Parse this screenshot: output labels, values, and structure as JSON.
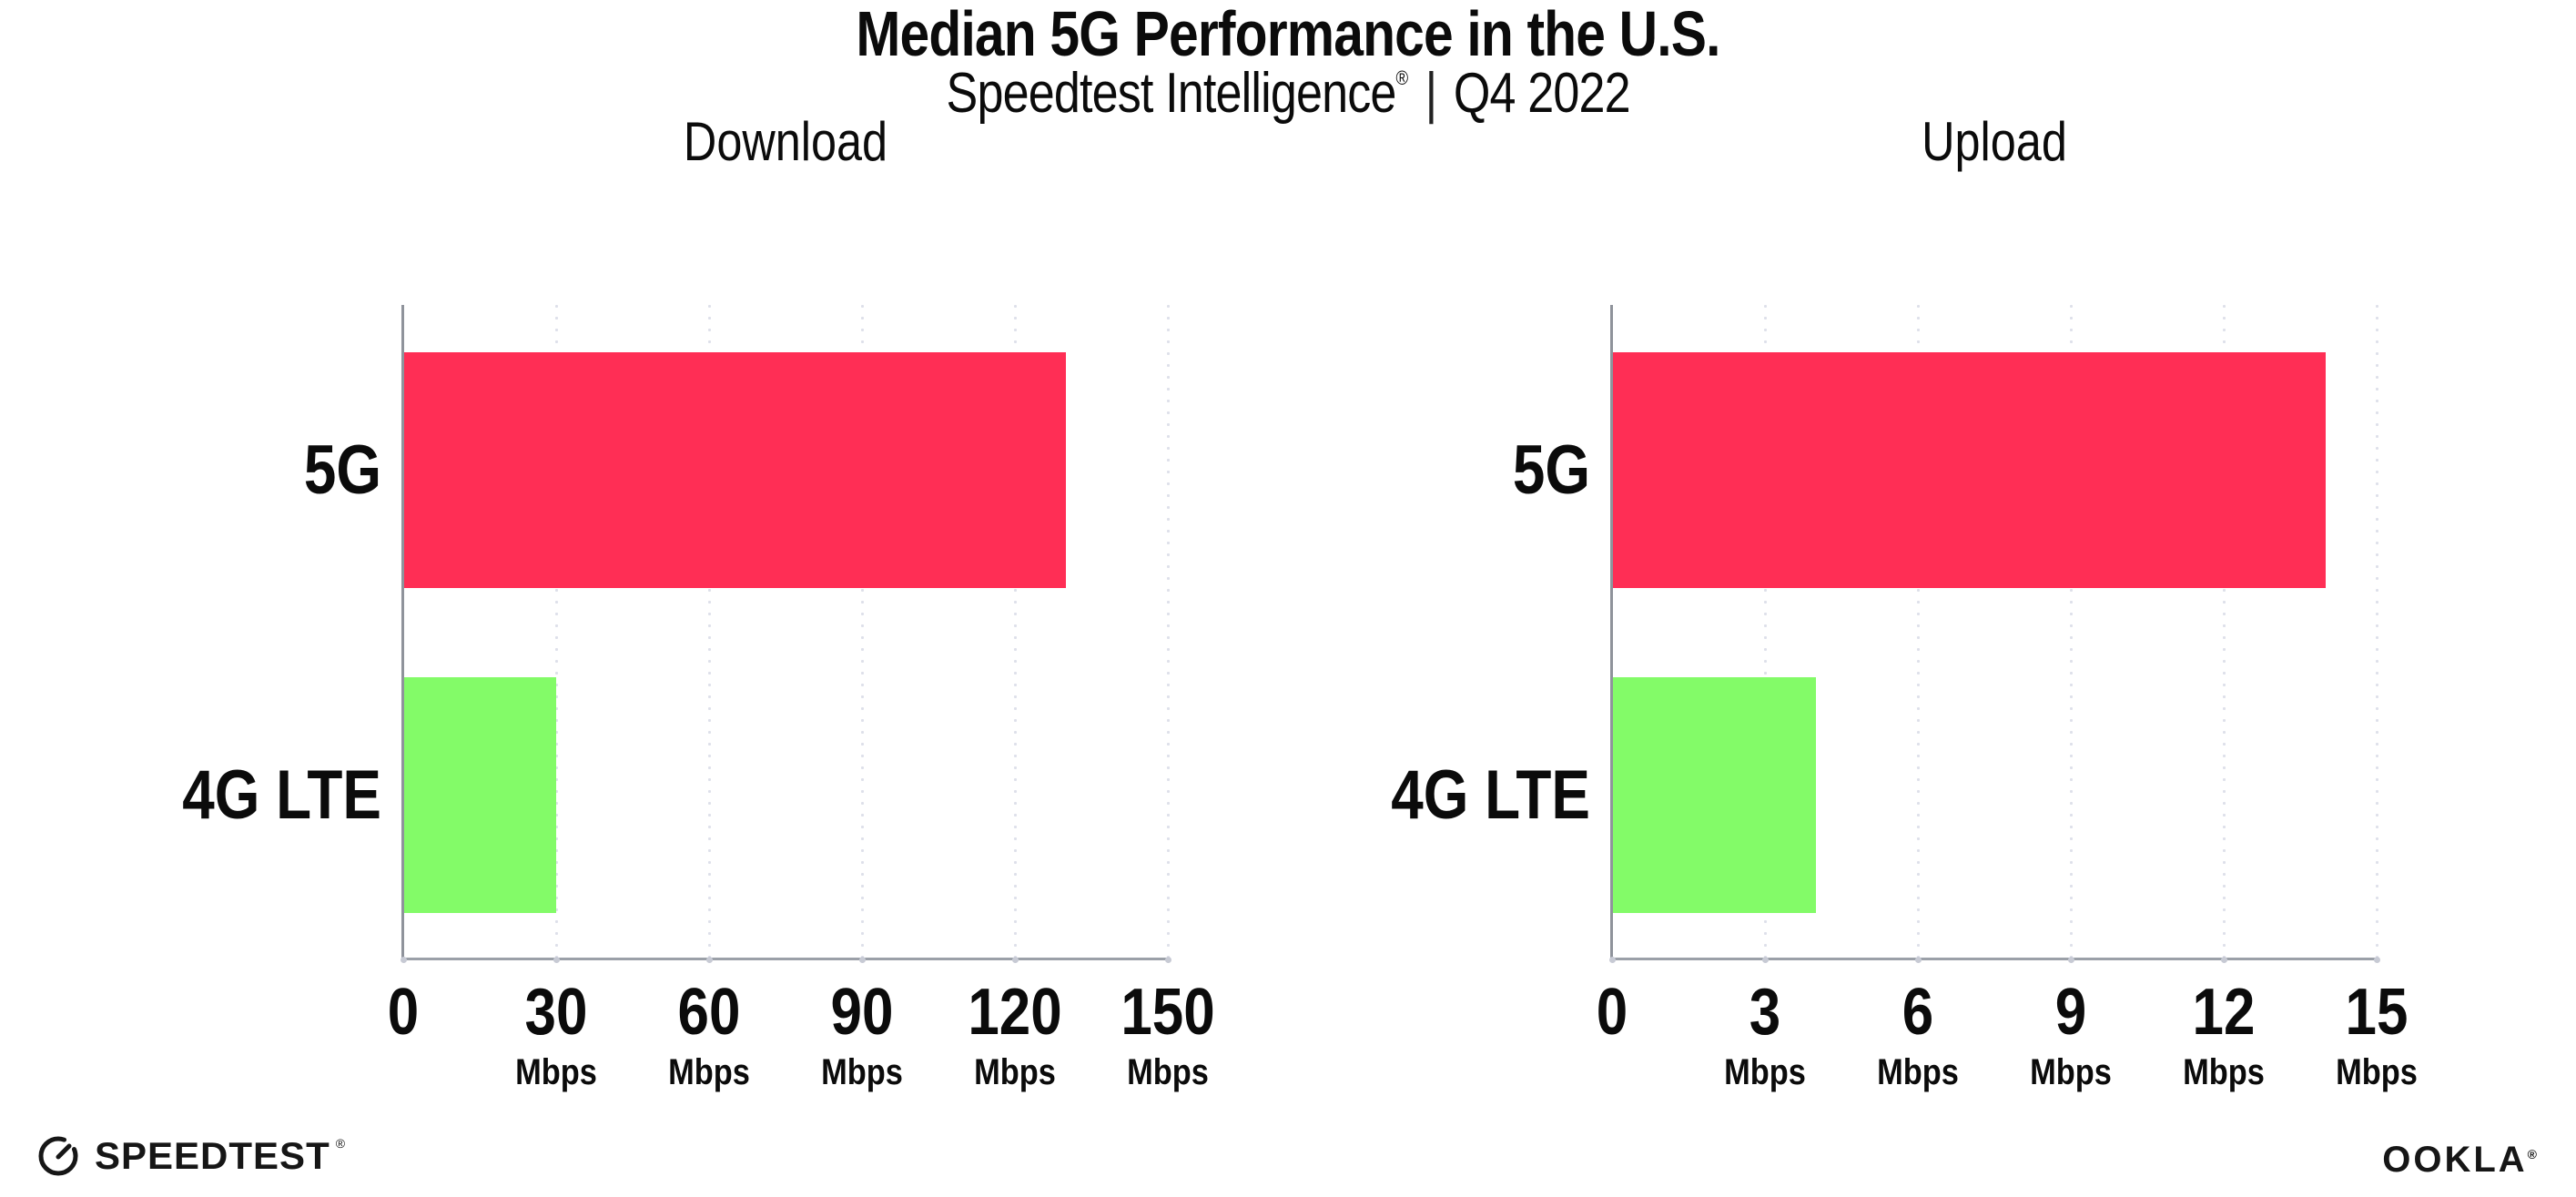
{
  "header": {
    "title": "Median 5G Performance in the U.S.",
    "subtitle_brand": "Speedtest Intelligence",
    "registered": "®",
    "separator": "|",
    "period": "Q4 2022"
  },
  "chart_data": [
    {
      "type": "bar",
      "orientation": "horizontal",
      "title": "Download",
      "categories": [
        "5G",
        "4G LTE"
      ],
      "values": [
        130,
        30
      ],
      "unit": "Mbps",
      "xlim": [
        0,
        150
      ],
      "ticks": [
        {
          "label": "0",
          "unit": ""
        },
        {
          "label": "30",
          "unit": "Mbps"
        },
        {
          "label": "60",
          "unit": "Mbps"
        },
        {
          "label": "90",
          "unit": "Mbps"
        },
        {
          "label": "120",
          "unit": "Mbps"
        },
        {
          "label": "150",
          "unit": "Mbps"
        }
      ],
      "bar_colors": [
        "#FF2E55",
        "#83FB68"
      ],
      "grid": "dotted-vertical",
      "legend": "none"
    },
    {
      "type": "bar",
      "orientation": "horizontal",
      "title": "Upload",
      "categories": [
        "5G",
        "4G LTE"
      ],
      "values": [
        14,
        4
      ],
      "unit": "Mbps",
      "xlim": [
        0,
        15
      ],
      "ticks": [
        {
          "label": "0",
          "unit": ""
        },
        {
          "label": "3",
          "unit": "Mbps"
        },
        {
          "label": "6",
          "unit": "Mbps"
        },
        {
          "label": "9",
          "unit": "Mbps"
        },
        {
          "label": "12",
          "unit": "Mbps"
        },
        {
          "label": "15",
          "unit": "Mbps"
        }
      ],
      "bar_colors": [
        "#FF2E55",
        "#83FB68"
      ],
      "grid": "dotted-vertical",
      "legend": "none"
    }
  ],
  "colors": {
    "bar_5g": "#FF2E55",
    "bar_4g_lte": "#83FB68",
    "grid_dot": "#DEE0EA",
    "axis": "#9BA0A8",
    "text": "#0B0B0B"
  },
  "footer": {
    "speedtest_label": "SPEEDTEST",
    "speedtest_reg": "®",
    "ookla_label": "OOKLA",
    "ookla_reg": "®"
  }
}
